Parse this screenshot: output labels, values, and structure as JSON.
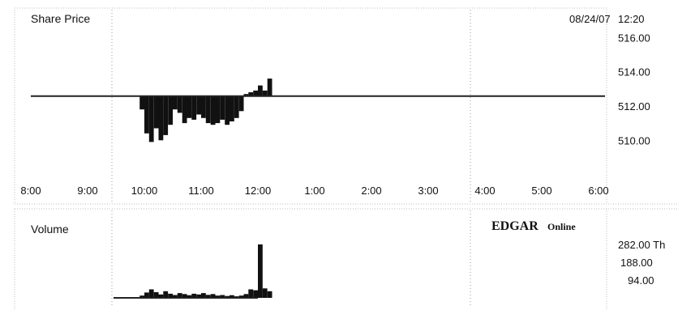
{
  "price_panel": {
    "title": "Share Price",
    "date": "08/24/07",
    "time": "12:20"
  },
  "volume_panel": {
    "title": "Volume",
    "logo_main": "EDGAR",
    "logo_suffix": "Online"
  },
  "colors": {
    "bars": "#111111",
    "baseline": "#222222",
    "grid": "#9a9a9a",
    "frame": "#9a9a9a"
  },
  "chart_data": [
    {
      "type": "bar",
      "title": "Share Price",
      "x_ticks": [
        "8:00",
        "9:00",
        "10:00",
        "11:00",
        "12:00",
        "1:00",
        "2:00",
        "3:00",
        "4:00",
        "5:00",
        "6:00"
      ],
      "y_ticks": [
        "516.00",
        "514.00",
        "512.00",
        "510.00"
      ],
      "ylim": [
        508.5,
        516.3
      ],
      "reference_value": 512.58,
      "grid": "dotted vertical lines at 10:00 and 4:00",
      "x": [
        "9:55",
        "10:00",
        "10:05",
        "10:10",
        "10:15",
        "10:20",
        "10:25",
        "10:30",
        "10:35",
        "10:40",
        "10:45",
        "10:50",
        "10:55",
        "11:00",
        "11:05",
        "11:10",
        "11:15",
        "11:20",
        "11:25",
        "11:30",
        "11:35",
        "11:40",
        "11:45",
        "11:50",
        "11:55",
        "12:00",
        "12:05",
        "12:10"
      ],
      "values": [
        511.8,
        510.4,
        509.9,
        510.7,
        510.0,
        510.3,
        510.9,
        511.8,
        511.6,
        511.0,
        511.3,
        511.2,
        511.5,
        511.3,
        511.0,
        510.9,
        511.0,
        511.2,
        510.9,
        511.1,
        511.3,
        511.7,
        512.7,
        512.8,
        512.9,
        513.2,
        512.9,
        513.6
      ]
    },
    {
      "type": "bar",
      "title": "Volume",
      "y_ticks": [
        "282.00 Th",
        "188.00",
        "94.00"
      ],
      "ylim": [
        0,
        282
      ],
      "x": [
        "9:55",
        "10:00",
        "10:05",
        "10:10",
        "10:15",
        "10:20",
        "10:25",
        "10:30",
        "10:35",
        "10:40",
        "10:45",
        "10:50",
        "10:55",
        "11:00",
        "11:05",
        "11:10",
        "11:15",
        "11:20",
        "11:25",
        "11:30",
        "11:35",
        "11:40",
        "11:45",
        "11:50",
        "11:55",
        "12:00",
        "12:05",
        "12:10"
      ],
      "values": [
        12,
        28,
        45,
        30,
        18,
        35,
        22,
        15,
        25,
        20,
        14,
        22,
        18,
        25,
        16,
        20,
        12,
        15,
        10,
        14,
        8,
        12,
        20,
        45,
        40,
        282,
        50,
        35
      ]
    }
  ]
}
